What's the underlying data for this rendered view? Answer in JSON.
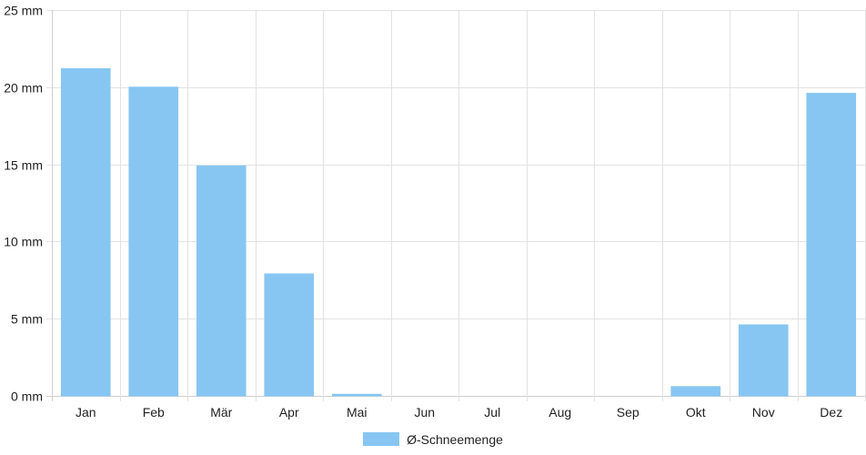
{
  "chart_data": {
    "type": "bar",
    "categories": [
      "Jan",
      "Feb",
      "Mär",
      "Apr",
      "Mai",
      "Jun",
      "Jul",
      "Aug",
      "Sep",
      "Okt",
      "Nov",
      "Dez"
    ],
    "series": [
      {
        "name": "Ø-Schneemenge",
        "values": [
          21.2,
          20.0,
          14.9,
          7.9,
          0.1,
          0,
          0,
          0,
          0,
          0.6,
          4.6,
          19.6
        ]
      }
    ],
    "ylim": [
      0,
      25
    ],
    "yticks": [
      0,
      5,
      10,
      15,
      20,
      25
    ],
    "ytick_labels": [
      "0 mm",
      "5 mm",
      "10 mm",
      "15 mm",
      "20 mm",
      "25 mm"
    ],
    "title": "",
    "xlabel": "",
    "ylabel": "",
    "grid": true,
    "legend_position": "bottom"
  },
  "colors": {
    "bar_fill": "#87c6f2",
    "bar_stroke": "#87c6f2",
    "grid": "#e2e2e2",
    "axis": "#cfcfcf",
    "text": "#222222"
  }
}
